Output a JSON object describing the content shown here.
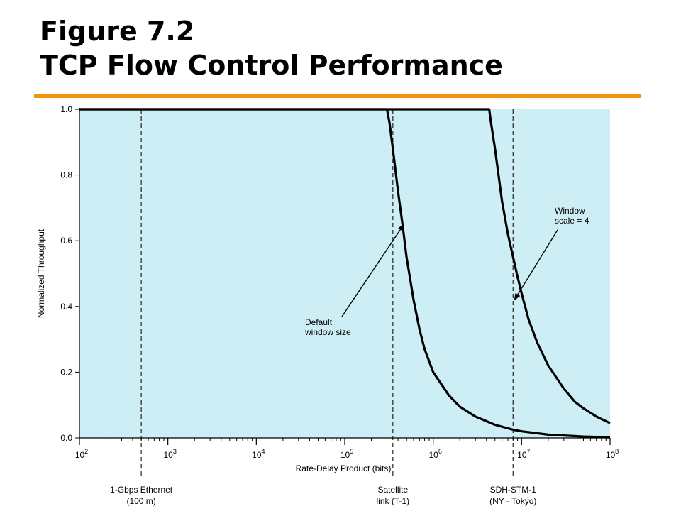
{
  "slide": {
    "title_line1": "Figure 7.2",
    "title_line2": "TCP Flow Control Performance",
    "accent_color": "#f0960a"
  },
  "chart_data": {
    "type": "line",
    "xscale": "log",
    "xlim": [
      100,
      100000000
    ],
    "ylim": [
      0,
      1.0
    ],
    "xlabel": "Rate-Delay Product (bits)",
    "ylabel": "Normalized Throughput",
    "xticks": [
      {
        "value": 100,
        "base": "10",
        "exp": "2"
      },
      {
        "value": 1000,
        "base": "10",
        "exp": "3"
      },
      {
        "value": 10000,
        "base": "10",
        "exp": "4"
      },
      {
        "value": 100000,
        "base": "10",
        "exp": "5"
      },
      {
        "value": 1000000,
        "base": "10",
        "exp": "6"
      },
      {
        "value": 10000000,
        "base": "10",
        "exp": "7"
      },
      {
        "value": 100000000,
        "base": "10",
        "exp": "8"
      }
    ],
    "yticks": [
      "0.0",
      "0.2",
      "0.4",
      "0.6",
      "0.8",
      "1.0"
    ],
    "plot_background": "#cdeef4",
    "series": [
      {
        "name": "Default window size",
        "x": [
          100,
          200000,
          300000,
          320000,
          350000,
          400000,
          450000,
          500000,
          600000,
          700000,
          800000,
          1000000,
          1500000,
          2000000,
          3000000,
          5000000,
          8000000,
          10000000,
          20000000,
          50000000,
          100000000
        ],
        "y": [
          1.0,
          1.0,
          1.0,
          0.96,
          0.88,
          0.75,
          0.65,
          0.55,
          0.42,
          0.33,
          0.27,
          0.2,
          0.13,
          0.095,
          0.065,
          0.04,
          0.025,
          0.02,
          0.01,
          0.004,
          0.002
        ]
      },
      {
        "name": "Window scale = 4",
        "x": [
          100,
          2000000,
          4300000,
          4500000,
          5000000,
          6000000,
          7000000,
          8000000,
          9000000,
          10000000,
          12000000,
          15000000,
          20000000,
          30000000,
          40000000,
          50000000,
          70000000,
          100000000
        ],
        "y": [
          1.0,
          1.0,
          1.0,
          0.96,
          0.88,
          0.72,
          0.62,
          0.55,
          0.49,
          0.44,
          0.36,
          0.29,
          0.22,
          0.15,
          0.11,
          0.09,
          0.065,
          0.045
        ]
      }
    ],
    "reference_lines": [
      {
        "x": 500,
        "label_line1": "1-Gbps Ethernet",
        "label_line2": "(100 m)"
      },
      {
        "x": 350000,
        "label_line1": "Satellite",
        "label_line2": "link (T-1)"
      },
      {
        "x": 8000000,
        "label_line1": "SDH-STM-1",
        "label_line2": "(NY - Tokyo)"
      }
    ],
    "annotations": [
      {
        "line1": "Default",
        "line2": "window size",
        "target_x": 450000,
        "target_y": 0.65
      },
      {
        "line1": "Window",
        "line2": "scale = 4",
        "target_x": 8000000,
        "target_y": 0.42
      }
    ]
  }
}
